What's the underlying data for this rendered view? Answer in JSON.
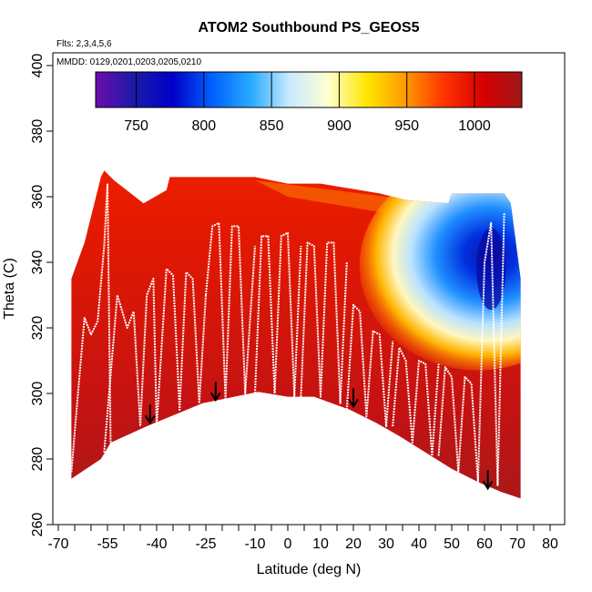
{
  "chart_data": {
    "type": "heatmap",
    "title": "ATOM2 Southbound PS_GEOS5",
    "flights_note": "Flts: 2,3,4,5,6",
    "dates_note": "MMDD: 0129,0201,0203,0205,0210",
    "xlabel": "Latitude (deg N)",
    "ylabel": "Theta (C)",
    "xlim": [
      -70,
      80
    ],
    "ylim": [
      260,
      400
    ],
    "x_tick_labels": [
      "-70",
      "-55",
      "-40",
      "-25",
      "-10",
      "0",
      "10",
      "20",
      "30",
      "40",
      "50",
      "60",
      "70",
      "80"
    ],
    "x_tick_values": [
      -70,
      -55,
      -40,
      -25,
      -10,
      0,
      10,
      20,
      30,
      40,
      50,
      60,
      70,
      80
    ],
    "x_minor_ticks": [
      -65,
      -60,
      -50,
      -45,
      -35,
      -30,
      -20,
      -15,
      -5,
      5,
      15,
      25,
      35,
      45,
      55,
      65,
      75
    ],
    "y_ticks": [
      260,
      280,
      300,
      320,
      340,
      360,
      380,
      400
    ],
    "colorbar": {
      "range": [
        720,
        1035
      ],
      "ticks": [
        750,
        800,
        850,
        900,
        950,
        1000
      ],
      "colors": [
        "#6a0dad",
        "#1a1aa8",
        "#0000c8",
        "#0060ff",
        "#28aaff",
        "#c9eaff",
        "#ffffd0",
        "#ffe600",
        "#ff9900",
        "#ff3300",
        "#d60000",
        "#a01818"
      ]
    },
    "floor": {
      "lat": [
        -66,
        -57,
        -54,
        -43,
        -26,
        -9,
        0,
        8,
        19,
        27,
        34,
        42,
        50,
        58,
        65,
        71
      ],
      "theta": [
        274,
        280,
        285,
        290,
        297,
        300.5,
        299,
        299,
        295,
        291,
        287,
        282,
        277,
        273,
        270,
        268
      ]
    },
    "top": {
      "lat": [
        -66,
        -62,
        -57,
        -56,
        -53,
        -44,
        -37,
        -36,
        -10,
        0,
        10,
        28,
        36,
        49,
        50,
        66,
        68,
        71
      ],
      "theta": [
        335,
        346,
        366,
        368,
        365,
        358,
        362,
        366,
        366,
        364,
        364,
        361,
        359,
        358,
        361,
        361,
        358,
        335
      ]
    },
    "blue_anomaly": {
      "center_lat": 58,
      "center_theta": 339,
      "min_value": 735
    },
    "flight_paths": [
      {
        "lat": [
          -66,
          -64,
          -62,
          -60,
          -58,
          -56,
          -55,
          -54
        ],
        "theta": [
          276,
          300,
          323,
          318,
          322,
          345,
          364,
          282
        ]
      },
      {
        "lat": [
          -56,
          -52,
          -49,
          -47,
          -45,
          -43,
          -41,
          -40
        ],
        "theta": [
          282,
          330,
          320,
          325,
          290,
          330,
          335,
          290
        ]
      },
      {
        "lat": [
          -40,
          -37,
          -35,
          -33,
          -31,
          -29,
          -27,
          -25
        ],
        "theta": [
          290,
          338,
          336,
          295,
          337,
          335,
          297,
          330
        ]
      },
      {
        "lat": [
          -25,
          -23,
          -21,
          -19,
          -17,
          -15,
          -13,
          -10
        ],
        "theta": [
          330,
          351,
          352,
          298,
          351,
          351,
          300,
          345
        ]
      },
      {
        "lat": [
          -10,
          -8,
          -6,
          -4,
          -2,
          0,
          2,
          4
        ],
        "theta": [
          300,
          348,
          348,
          300,
          348,
          349,
          299,
          345
        ]
      },
      {
        "lat": [
          4,
          6,
          8,
          10,
          12,
          14,
          16,
          18
        ],
        "theta": [
          299,
          346,
          345,
          299,
          346,
          346,
          297,
          340
        ]
      },
      {
        "lat": [
          18,
          20,
          22,
          24,
          26,
          28,
          30,
          32
        ],
        "theta": [
          295,
          327,
          325,
          293,
          319,
          318,
          290,
          316
        ]
      },
      {
        "lat": [
          32,
          34,
          36,
          38,
          40,
          42,
          44,
          46
        ],
        "theta": [
          290,
          314,
          310,
          285,
          310,
          309,
          281,
          309
        ]
      },
      {
        "lat": [
          46,
          48,
          50,
          52,
          54,
          56,
          58,
          60,
          62,
          64,
          66
        ],
        "theta": [
          281,
          308,
          305,
          276,
          305,
          303,
          273,
          340,
          352,
          272,
          355
        ]
      }
    ],
    "arrows": {
      "lat": [
        -42,
        -22,
        20,
        61
      ],
      "theta": [
        291,
        298,
        296,
        271
      ]
    }
  }
}
